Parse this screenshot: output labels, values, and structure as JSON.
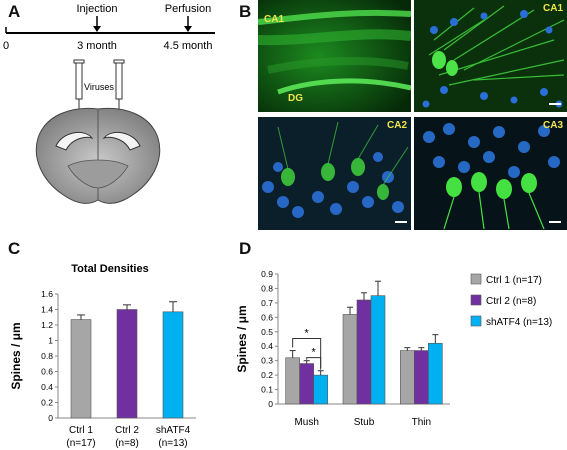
{
  "panel_labels": {
    "a": "A",
    "b": "B",
    "c": "C",
    "d": "D"
  },
  "timeline": {
    "start": "0",
    "injection_label": "Injection",
    "injection_time": "3 month",
    "perfusion_label": "Perfusion",
    "perfusion_time": "4.5 month"
  },
  "brain": {
    "viruses_label": "Viruses"
  },
  "micrographs": {
    "overview_label_top": "CA1",
    "overview_label_bottom": "DG",
    "ca1_label": "CA1",
    "ca2_label": "CA2",
    "ca3_label": "CA3"
  },
  "colors": {
    "ctrl1": "#a6a6a6",
    "ctrl2": "#7030a0",
    "shatf4": "#00b0f0",
    "micro_green": "#22c32a",
    "micro_blue": "#2a6fd8",
    "label_yellow": "#f2e64a"
  },
  "chart_data": [
    {
      "type": "bar",
      "title": "Total Densities",
      "ylabel": "Spines / μm",
      "ylim": [
        0,
        1.6
      ],
      "yticks": [
        "0",
        "0.2",
        "0.4",
        "0.6",
        "0.8",
        "1",
        "1.2",
        "1.4",
        "1.6"
      ],
      "categories": [
        {
          "line1": "Ctrl 1",
          "line2": "(n=17)"
        },
        {
          "line1": "Ctrl 2",
          "line2": "(n=8)"
        },
        {
          "line1": "shATF4",
          "line2": "(n=13)"
        }
      ],
      "values": [
        1.27,
        1.4,
        1.37
      ],
      "errors": [
        0.06,
        0.06,
        0.13
      ]
    },
    {
      "type": "bar",
      "ylabel": "Spines / μm",
      "ylim": [
        0,
        0.9
      ],
      "yticks": [
        "0",
        "0.1",
        "0.2",
        "0.3",
        "0.4",
        "0.5",
        "0.6",
        "0.7",
        "0.8",
        "0.9"
      ],
      "categories": [
        "Mush",
        "Stub",
        "Thin"
      ],
      "series": [
        {
          "name": "Ctrl 1 (n=17)",
          "values": [
            0.32,
            0.62,
            0.37
          ],
          "errors": [
            0.05,
            0.05,
            0.02
          ]
        },
        {
          "name": "Ctrl 2 (n=8)",
          "values": [
            0.28,
            0.72,
            0.37
          ],
          "errors": [
            0.02,
            0.05,
            0.02
          ]
        },
        {
          "name": "shATF4 (n=13)",
          "values": [
            0.2,
            0.75,
            0.42
          ],
          "errors": [
            0.03,
            0.1,
            0.06
          ]
        }
      ],
      "legend_position": "right",
      "significance": [
        "*",
        "*"
      ]
    }
  ]
}
